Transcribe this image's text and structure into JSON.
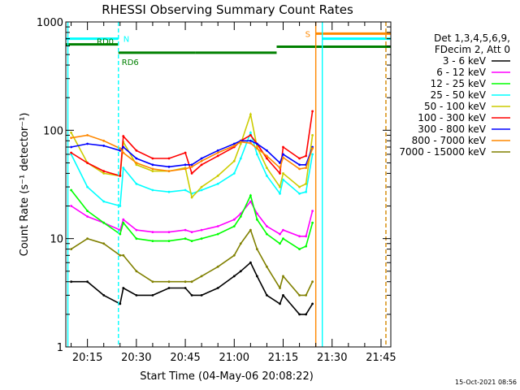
{
  "chart_data": {
    "type": "line",
    "title": "RHESSI Observing Summary Count Rates",
    "xlabel": "Start Time (04-May-06 20:08:22)",
    "ylabel": "Count Rate (s⁻¹ detector⁻¹)",
    "yscale": "log",
    "ylim": [
      1,
      1000
    ],
    "xlim": [
      "20:08:22",
      "21:48:00"
    ],
    "x_ticks": [
      "20:15",
      "20:30",
      "20:45",
      "21:00",
      "21:15",
      "21:30",
      "21:45"
    ],
    "y_ticks": [
      "1",
      "10",
      "100",
      "1000"
    ],
    "timestamp": "15-Oct-2021 08:56",
    "legend_header": [
      "Det 1,3,4,5,6,9,",
      "FDecim 2, Att 0"
    ],
    "legend_position": "right",
    "x": [
      "20:10",
      "20:15",
      "20:20",
      "20:25",
      "20:26",
      "20:30",
      "20:35",
      "20:40",
      "20:45",
      "20:47",
      "20:50",
      "20:55",
      "21:00",
      "21:02",
      "21:05",
      "21:07",
      "21:10",
      "21:14",
      "21:15",
      "21:20",
      "21:22",
      "21:24"
    ],
    "series": [
      {
        "name": "3 - 6 keV",
        "color": "#000000",
        "values": [
          4,
          4,
          3,
          2.5,
          3.5,
          3,
          3,
          3.5,
          3.5,
          3,
          3,
          3.5,
          4.5,
          5,
          6,
          4.5,
          3,
          2.5,
          3,
          2,
          2,
          2.5
        ]
      },
      {
        "name": "6 - 12 keV",
        "color": "#ff00ff",
        "values": [
          20,
          16,
          14,
          12,
          15,
          12,
          11.5,
          11.5,
          12,
          11.5,
          12,
          13,
          15,
          17,
          22,
          17,
          13,
          11,
          12,
          10.5,
          10.5,
          18
        ]
      },
      {
        "name": "12 - 25 keV",
        "color": "#00ff00",
        "values": [
          28,
          18,
          14,
          11,
          14,
          10,
          9.5,
          9.5,
          10,
          9.5,
          10,
          11,
          13,
          16,
          25,
          15,
          11,
          9,
          10,
          8,
          8.5,
          14
        ]
      },
      {
        "name": "25 - 50 keV",
        "color": "#00ffff",
        "values": [
          60,
          30,
          22,
          20,
          45,
          32,
          28,
          27,
          28,
          26,
          28,
          32,
          40,
          55,
          95,
          60,
          38,
          26,
          35,
          26,
          27,
          60
        ]
      },
      {
        "name": "50 - 100 keV",
        "color": "#cccc00",
        "values": [
          95,
          50,
          40,
          38,
          78,
          48,
          42,
          42,
          45,
          24,
          30,
          38,
          52,
          75,
          140,
          70,
          45,
          30,
          40,
          30,
          32,
          90
        ]
      },
      {
        "name": "100 - 300 keV",
        "color": "#ff0000",
        "values": [
          62,
          50,
          42,
          38,
          88,
          65,
          55,
          55,
          62,
          40,
          48,
          58,
          70,
          80,
          90,
          75,
          55,
          40,
          70,
          55,
          58,
          150
        ]
      },
      {
        "name": "300 - 800 keV",
        "color": "#0000ff",
        "values": [
          70,
          75,
          72,
          65,
          70,
          55,
          48,
          46,
          48,
          48,
          55,
          65,
          75,
          80,
          80,
          75,
          65,
          50,
          60,
          48,
          48,
          70
        ]
      },
      {
        "name": "800 - 7000 keV",
        "color": "#ff8800",
        "values": [
          85,
          90,
          80,
          68,
          62,
          50,
          44,
          42,
          44,
          46,
          52,
          62,
          72,
          78,
          76,
          68,
          58,
          45,
          56,
          44,
          45,
          68
        ]
      },
      {
        "name": "7000 - 15000 keV",
        "color": "#808000",
        "values": [
          8,
          10,
          9,
          7,
          7,
          5,
          4,
          4,
          4,
          4,
          4.5,
          5.5,
          7,
          9,
          12,
          8,
          5.5,
          3.5,
          4.5,
          3,
          3,
          4
        ]
      }
    ],
    "state_bars": [
      {
        "label": "N",
        "color": "#00ffff",
        "start": "20:08:22",
        "end": "20:24:30",
        "level": 700
      },
      {
        "label": "",
        "color": "#00ffff",
        "start": "21:27:00",
        "end": "21:48:00",
        "level": 700
      },
      {
        "label": "S",
        "color": "#ff8800",
        "start": "21:25:00",
        "end": "21:48:00",
        "level": 780
      },
      {
        "label": "RD0",
        "color": "#008000",
        "start": "20:08:22",
        "end": "20:24:30",
        "level": 620
      },
      {
        "label": "RD6",
        "color": "#008000",
        "start": "20:24:30",
        "end": "20:48:00",
        "level": 520
      },
      {
        "label": "",
        "color": "#008000",
        "start": "20:48:00",
        "end": "21:13:00",
        "level": 520
      },
      {
        "label": "",
        "color": "#008000",
        "start": "21:13:00",
        "end": "21:48:00",
        "level": 590
      }
    ],
    "vertical_markers": [
      {
        "time": "20:09:00",
        "color": "#00ffff",
        "style": "solid"
      },
      {
        "time": "20:24:30",
        "color": "#00ffff",
        "style": "dashed"
      },
      {
        "time": "21:25:00",
        "color": "#ff8800",
        "style": "solid"
      },
      {
        "time": "21:27:00",
        "color": "#00ffff",
        "style": "solid"
      },
      {
        "time": "21:46:30",
        "color": "#00ffff",
        "style": "dashed"
      },
      {
        "time": "21:46:30",
        "color": "#ff8800",
        "style": "dashed"
      }
    ]
  }
}
